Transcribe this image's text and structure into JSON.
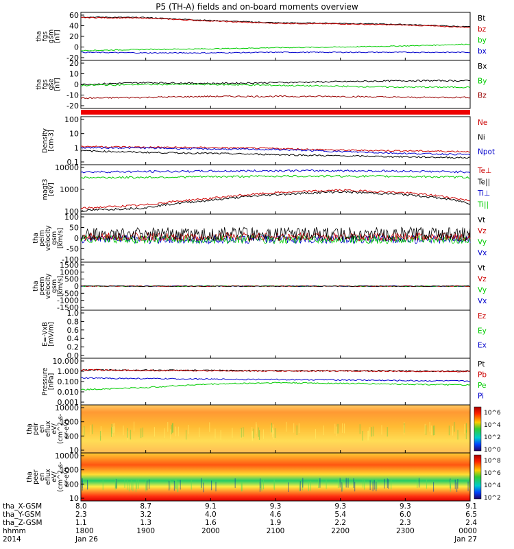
{
  "title": "P5 (TH-A) fields and on-board moments overview",
  "panels": [
    {
      "id": "fgs_gsm",
      "ylabel": [
        "tha",
        "fgs",
        "gsm",
        "[nT]"
      ],
      "ticks": [
        "60",
        "40",
        "20",
        "0",
        "-20"
      ],
      "legend": [
        "Bt",
        "bz",
        "by",
        "bx"
      ],
      "legend_colors": [
        "#000000",
        "#cc0000",
        "#00cc00",
        "#0000cc"
      ]
    },
    {
      "id": "fgs_gse",
      "ylabel": [
        "tha",
        "fgs",
        "gse",
        "[nT]"
      ],
      "ticks": [
        "20",
        "10",
        "0",
        "-10",
        "-20"
      ],
      "legend": [
        "Bx",
        "By",
        "Bz"
      ],
      "legend_colors": [
        "#000000",
        "#00cc00",
        "#990000"
      ]
    },
    {
      "id": "density",
      "ylabel": [
        "Density",
        "[cm-3]"
      ],
      "ticks": [
        "100",
        "10",
        "1",
        "0.1"
      ],
      "legend": [
        "Ne",
        "Ni",
        "Npot"
      ],
      "legend_colors": [
        "#cc0000",
        "#000000",
        "#0000cc"
      ]
    },
    {
      "id": "temperature",
      "ylabel": [
        "magt3",
        "[eV]"
      ],
      "ticks": [
        "10000",
        "1000",
        "100"
      ],
      "legend": [
        "Te⊥",
        "Te||",
        "Ti⊥",
        "Ti||"
      ],
      "legend_colors": [
        "#cc0000",
        "#000000",
        "#0000cc",
        "#00cc00"
      ]
    },
    {
      "id": "peim_vel",
      "ylabel": [
        "tha",
        "peim",
        "velocity",
        "gsm",
        "[km/s]"
      ],
      "ticks": [
        "100",
        "50",
        "0",
        "-50",
        "-100"
      ],
      "legend": [
        "Vt",
        "Vz",
        "Vy",
        "Vx"
      ],
      "legend_colors": [
        "#000000",
        "#cc0000",
        "#00cc00",
        "#0000cc"
      ]
    },
    {
      "id": "peem_vel",
      "ylabel": [
        "tha",
        "peem",
        "velocity",
        "gsm",
        "[km/s]"
      ],
      "ticks": [
        "1500",
        "1000",
        "500",
        "0",
        "-500",
        "-1000",
        "-1500"
      ],
      "legend": [
        "Vt",
        "Vz",
        "Vy",
        "Vx"
      ],
      "legend_colors": [
        "#000000",
        "#cc0000",
        "#00cc00",
        "#0000cc"
      ]
    },
    {
      "id": "efield",
      "ylabel": [
        "E=-VxB",
        "[mV/m]"
      ],
      "ticks": [
        "1.0",
        "0.8",
        "0.6",
        "0.4",
        "0.2",
        "0.0"
      ],
      "legend": [
        "Ez",
        "Ey",
        "Ex"
      ],
      "legend_colors": [
        "#cc0000",
        "#00cc00",
        "#0000cc"
      ]
    },
    {
      "id": "pressure",
      "ylabel": [
        "Pressure",
        "[nPa]"
      ],
      "ticks": [
        "10.000",
        "1.000",
        "0.100",
        "0.010",
        "0.001"
      ],
      "legend": [
        "Pt",
        "Pb",
        "Pe",
        "Pi"
      ],
      "legend_colors": [
        "#000000",
        "#cc0000",
        "#00cc00",
        "#0000cc"
      ]
    },
    {
      "id": "peir_eflux",
      "ylabel": [
        "tha",
        "peir",
        "en",
        "eflux",
        "eV/",
        "(cm^2-s-",
        "sr-eV)"
      ],
      "ticks": [
        "10000",
        "1000",
        "100",
        "10"
      ],
      "colorbar": [
        "10^6",
        "10^4",
        "10^2",
        "10^0"
      ]
    },
    {
      "id": "peer_eflux",
      "ylabel": [
        "tha",
        "peer",
        "en",
        "eflux",
        "eV/",
        "(cm^2-s-",
        "sr-eV)"
      ],
      "ticks": [
        "10000",
        "1000",
        "100",
        "10"
      ],
      "colorbar": [
        "10^8",
        "10^6",
        "10^4",
        "10^2"
      ]
    }
  ],
  "xaxis": {
    "row_labels": [
      "tha_X-GSM",
      "tha_Y-GSM",
      "tha_Z-GSM",
      "hhmm",
      "2014"
    ],
    "columns": [
      {
        "x": "8.0",
        "y": "2.3",
        "z": "1.1",
        "hhmm": "1800",
        "date": "Jan 26"
      },
      {
        "x": "8.7",
        "y": "3.2",
        "z": "1.3",
        "hhmm": "1900",
        "date": ""
      },
      {
        "x": "9.1",
        "y": "4.0",
        "z": "1.6",
        "hhmm": "2000",
        "date": ""
      },
      {
        "x": "9.3",
        "y": "4.6",
        "z": "1.9",
        "hhmm": "2100",
        "date": ""
      },
      {
        "x": "9.3",
        "y": "5.4",
        "z": "2.2",
        "hhmm": "2200",
        "date": ""
      },
      {
        "x": "9.3",
        "y": "6.0",
        "z": "2.3",
        "hhmm": "2300",
        "date": ""
      },
      {
        "x": "9.1",
        "y": "6.5",
        "z": "2.4",
        "hhmm": "0000",
        "date": "Jan 27"
      }
    ]
  },
  "chart_data": {
    "type": "line",
    "title": "P5 (TH-A) fields and on-board moments overview",
    "x": [
      "1800",
      "1900",
      "2000",
      "2100",
      "2200",
      "2300",
      "0000"
    ],
    "series": [
      {
        "name": "Bt",
        "panel": "fgs_gsm",
        "values": [
          55,
          54,
          49,
          45,
          44,
          42,
          38
        ]
      },
      {
        "name": "bz",
        "panel": "fgs_gsm",
        "values": [
          54,
          53,
          48,
          44,
          43,
          41,
          37
        ]
      },
      {
        "name": "by",
        "panel": "fgs_gsm",
        "values": [
          -3,
          -1,
          0,
          2,
          3,
          5,
          8
        ]
      },
      {
        "name": "bx",
        "panel": "fgs_gsm",
        "values": [
          -6,
          -7,
          -7,
          -6,
          -6,
          -6,
          -6
        ]
      },
      {
        "name": "Bx",
        "panel": "fgs_gse",
        "values": [
          0,
          2,
          1,
          2,
          3,
          4,
          4
        ]
      },
      {
        "name": "By",
        "panel": "fgs_gse",
        "values": [
          -1,
          0,
          0,
          -1,
          -2,
          -3,
          -3
        ]
      },
      {
        "name": "Bz",
        "panel": "fgs_gse",
        "values": [
          -15,
          -14,
          -13,
          -13,
          -13,
          -14,
          -14
        ]
      },
      {
        "name": "Ne",
        "panel": "density",
        "values": [
          1.8,
          1.6,
          1.5,
          1.3,
          1.0,
          0.9,
          0.8
        ]
      },
      {
        "name": "Ni",
        "panel": "density",
        "values": [
          0.9,
          0.7,
          0.6,
          0.5,
          0.4,
          0.35,
          0.3
        ]
      },
      {
        "name": "Npot",
        "panel": "density",
        "values": [
          1.5,
          1.4,
          1.2,
          1.1,
          0.8,
          0.6,
          0.5
        ]
      },
      {
        "name": "Te⊥",
        "panel": "temperature",
        "values": [
          60,
          90,
          200,
          400,
          550,
          400,
          150
        ]
      },
      {
        "name": "Te||",
        "panel": "temperature",
        "values": [
          45,
          65,
          160,
          320,
          450,
          320,
          110
        ]
      },
      {
        "name": "Ti⊥",
        "panel": "temperature",
        "values": [
          5000,
          5200,
          5500,
          5800,
          5800,
          5500,
          5000
        ]
      },
      {
        "name": "Ti||",
        "panel": "temperature",
        "values": [
          2500,
          2600,
          2800,
          3000,
          3000,
          2900,
          2600
        ]
      },
      {
        "name": "Pt",
        "panel": "pressure",
        "values": [
          1.0,
          0.95,
          0.9,
          0.85,
          0.85,
          0.8,
          0.8
        ]
      },
      {
        "name": "Pb",
        "panel": "pressure",
        "values": [
          1.0,
          0.9,
          0.85,
          0.8,
          0.8,
          0.75,
          0.75
        ]
      },
      {
        "name": "Pe",
        "panel": "pressure",
        "values": [
          0.02,
          0.03,
          0.06,
          0.08,
          0.07,
          0.06,
          0.05
        ]
      },
      {
        "name": "Pi",
        "panel": "pressure",
        "values": [
          0.2,
          0.18,
          0.16,
          0.15,
          0.14,
          0.12,
          0.11
        ]
      }
    ]
  }
}
